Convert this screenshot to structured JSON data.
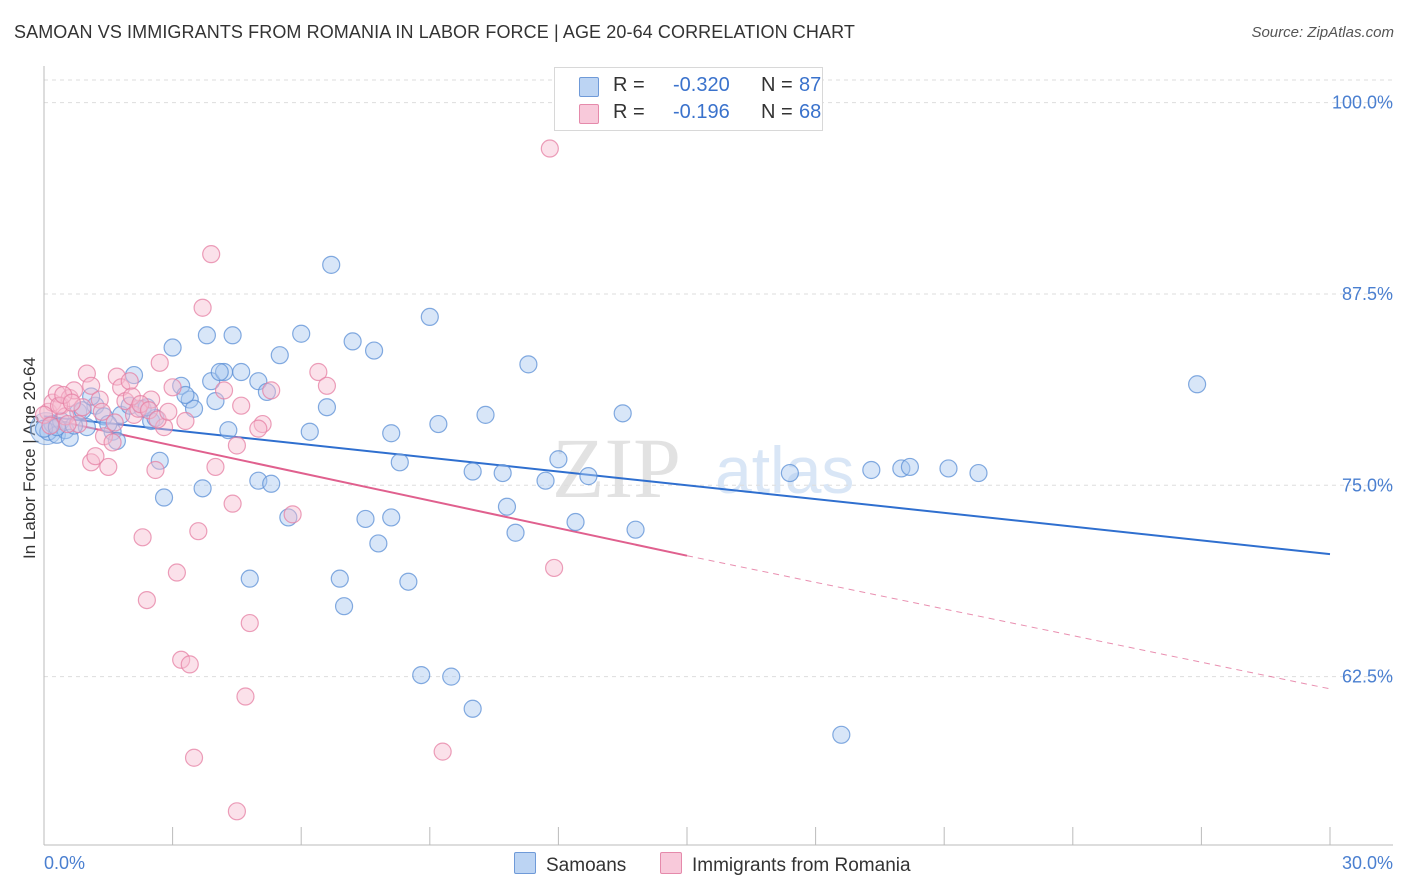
{
  "header": {
    "title": "SAMOAN VS IMMIGRANTS FROM ROMANIA IN LABOR FORCE | AGE 20-64 CORRELATION CHART",
    "source": "Source: ZipAtlas.com"
  },
  "watermark": {
    "zip": "ZIP",
    "atlas": "atlas"
  },
  "colors": {
    "blue_fill": "#a9c8ef",
    "blue_stroke": "#5b8fd6",
    "blue_line": "#2f6fcf",
    "pink_fill": "#f6bcd0",
    "pink_stroke": "#e57fa3",
    "pink_line": "#e0608e",
    "tick_text": "#4a7fd0",
    "grid": "#dddddd"
  },
  "legend": {
    "rows": [
      {
        "r_label": "R =",
        "r_value": "-0.320",
        "n_label": "N =",
        "n_value": "87"
      },
      {
        "r_label": "R =",
        "r_value": "-0.196",
        "n_label": "N =",
        "n_value": "68"
      }
    ]
  },
  "bottom_legend": {
    "series1": "Samoans",
    "series2": "Immigrants from Romania"
  },
  "chart_data": {
    "type": "scatter",
    "title": "SAMOAN VS IMMIGRANTS FROM ROMANIA IN LABOR FORCE | AGE 20-64 CORRELATION CHART",
    "xlabel": "",
    "ylabel": "In Labor Force | Age 20-64",
    "xlim": [
      0,
      30
    ],
    "ylim": [
      51.5,
      102
    ],
    "x_tick_labels": [
      "0.0%",
      "30.0%"
    ],
    "y_ticks": [
      62.5,
      75.0,
      87.5,
      100.0
    ],
    "y_tick_labels": [
      "62.5%",
      "75.0%",
      "87.5%",
      "100.0%"
    ],
    "series": [
      {
        "name": "Samoans",
        "r": -0.32,
        "n": 87,
        "trend": {
          "x0": 0.0,
          "y0": 79.5,
          "x1": 30.0,
          "y1": 70.5
        },
        "points": [
          [
            0.1,
            78.5
          ],
          [
            0.2,
            79.0
          ],
          [
            0.3,
            78.3
          ],
          [
            0.4,
            79.2
          ],
          [
            0.5,
            78.6
          ],
          [
            0.6,
            78.1
          ],
          [
            0.8,
            79.8
          ],
          [
            1.0,
            78.8
          ],
          [
            1.2,
            80.2
          ],
          [
            1.4,
            79.5
          ],
          [
            1.6,
            78.5
          ],
          [
            1.8,
            79.6
          ],
          [
            2.0,
            80.2
          ],
          [
            2.1,
            82.2
          ],
          [
            2.3,
            80.0
          ],
          [
            2.5,
            79.2
          ],
          [
            2.7,
            76.6
          ],
          [
            2.8,
            74.2
          ],
          [
            3.0,
            84.0
          ],
          [
            3.2,
            81.5
          ],
          [
            3.4,
            80.6
          ],
          [
            3.5,
            80.0
          ],
          [
            3.7,
            74.8
          ],
          [
            3.8,
            84.8
          ],
          [
            3.9,
            81.8
          ],
          [
            4.0,
            80.5
          ],
          [
            4.2,
            82.4
          ],
          [
            4.3,
            78.6
          ],
          [
            4.4,
            84.8
          ],
          [
            4.6,
            82.4
          ],
          [
            4.8,
            68.9
          ],
          [
            5.0,
            75.3
          ],
          [
            5.0,
            81.8
          ],
          [
            5.2,
            81.1
          ],
          [
            5.3,
            75.1
          ],
          [
            5.5,
            83.5
          ],
          [
            5.7,
            72.9
          ],
          [
            6.0,
            84.9
          ],
          [
            6.2,
            78.5
          ],
          [
            6.6,
            80.1
          ],
          [
            6.7,
            89.4
          ],
          [
            6.9,
            68.9
          ],
          [
            7.0,
            67.1
          ],
          [
            7.2,
            84.4
          ],
          [
            7.5,
            72.8
          ],
          [
            7.7,
            83.8
          ],
          [
            7.8,
            71.2
          ],
          [
            8.1,
            72.9
          ],
          [
            8.1,
            78.4
          ],
          [
            8.3,
            76.5
          ],
          [
            8.5,
            68.7
          ],
          [
            8.8,
            62.6
          ],
          [
            9.0,
            86.0
          ],
          [
            9.2,
            79.0
          ],
          [
            9.5,
            62.5
          ],
          [
            10.0,
            75.9
          ],
          [
            10.0,
            60.4
          ],
          [
            10.3,
            79.6
          ],
          [
            10.7,
            75.8
          ],
          [
            10.8,
            73.6
          ],
          [
            11.0,
            71.9
          ],
          [
            11.3,
            82.9
          ],
          [
            11.7,
            75.3
          ],
          [
            12.0,
            76.7
          ],
          [
            12.4,
            72.6
          ],
          [
            12.7,
            75.6
          ],
          [
            13.5,
            79.7
          ],
          [
            13.8,
            72.1
          ],
          [
            17.4,
            75.8
          ],
          [
            18.6,
            58.7
          ],
          [
            19.3,
            76.0
          ],
          [
            20.0,
            76.1
          ],
          [
            20.2,
            76.2
          ],
          [
            21.1,
            76.1
          ],
          [
            21.8,
            75.8
          ],
          [
            26.9,
            81.6
          ],
          [
            0.7,
            78.9
          ],
          [
            1.5,
            79.0
          ],
          [
            2.6,
            79.4
          ],
          [
            3.3,
            80.9
          ],
          [
            4.1,
            82.4
          ],
          [
            0.9,
            79.9
          ],
          [
            1.1,
            80.8
          ],
          [
            0.0,
            78.7
          ],
          [
            0.3,
            78.8
          ],
          [
            1.7,
            77.9
          ],
          [
            2.4,
            80.1
          ]
        ]
      },
      {
        "name": "Immigrants from Romania",
        "r": -0.196,
        "n": 68,
        "trend": {
          "x0": 0.0,
          "y0": 79.4,
          "x1": 15.0,
          "y1": 70.4,
          "dash_x1": 30.0,
          "dash_y1": 61.7
        },
        "points": [
          [
            0.1,
            79.8
          ],
          [
            0.2,
            80.4
          ],
          [
            0.3,
            81.0
          ],
          [
            0.4,
            80.2
          ],
          [
            0.5,
            79.5
          ],
          [
            0.6,
            80.7
          ],
          [
            0.7,
            81.2
          ],
          [
            0.8,
            79.0
          ],
          [
            0.9,
            80.1
          ],
          [
            1.0,
            82.3
          ],
          [
            1.1,
            81.5
          ],
          [
            1.1,
            76.5
          ],
          [
            1.2,
            76.9
          ],
          [
            1.3,
            80.6
          ],
          [
            1.4,
            78.2
          ],
          [
            1.5,
            76.2
          ],
          [
            1.6,
            77.8
          ],
          [
            1.7,
            82.1
          ],
          [
            1.8,
            81.4
          ],
          [
            1.9,
            80.5
          ],
          [
            2.0,
            81.8
          ],
          [
            2.1,
            79.6
          ],
          [
            2.2,
            80.0
          ],
          [
            2.3,
            71.6
          ],
          [
            2.4,
            67.5
          ],
          [
            2.5,
            80.6
          ],
          [
            2.6,
            76.0
          ],
          [
            2.7,
            83.0
          ],
          [
            2.8,
            78.8
          ],
          [
            3.0,
            81.4
          ],
          [
            3.1,
            69.3
          ],
          [
            3.2,
            63.6
          ],
          [
            3.4,
            63.3
          ],
          [
            3.5,
            57.2
          ],
          [
            3.6,
            72.0
          ],
          [
            3.7,
            86.6
          ],
          [
            3.9,
            90.1
          ],
          [
            4.0,
            76.2
          ],
          [
            4.2,
            81.2
          ],
          [
            4.4,
            73.8
          ],
          [
            4.5,
            53.7
          ],
          [
            4.6,
            80.2
          ],
          [
            4.7,
            61.2
          ],
          [
            4.8,
            66.0
          ],
          [
            5.1,
            79.0
          ],
          [
            5.3,
            81.2
          ],
          [
            5.8,
            73.1
          ],
          [
            6.4,
            82.4
          ],
          [
            6.6,
            81.5
          ],
          [
            9.3,
            57.6
          ],
          [
            11.8,
            97.0
          ],
          [
            11.9,
            69.6
          ],
          [
            0.0,
            79.6
          ],
          [
            0.15,
            78.9
          ],
          [
            0.35,
            80.2
          ],
          [
            0.45,
            80.9
          ],
          [
            0.55,
            79.0
          ],
          [
            0.65,
            80.4
          ],
          [
            1.35,
            79.8
          ],
          [
            1.65,
            79.1
          ],
          [
            2.05,
            80.8
          ],
          [
            2.25,
            80.3
          ],
          [
            2.45,
            79.9
          ],
          [
            2.65,
            79.3
          ],
          [
            2.9,
            79.8
          ],
          [
            3.3,
            79.2
          ],
          [
            4.5,
            77.6
          ],
          [
            5.0,
            78.7
          ]
        ]
      }
    ]
  }
}
